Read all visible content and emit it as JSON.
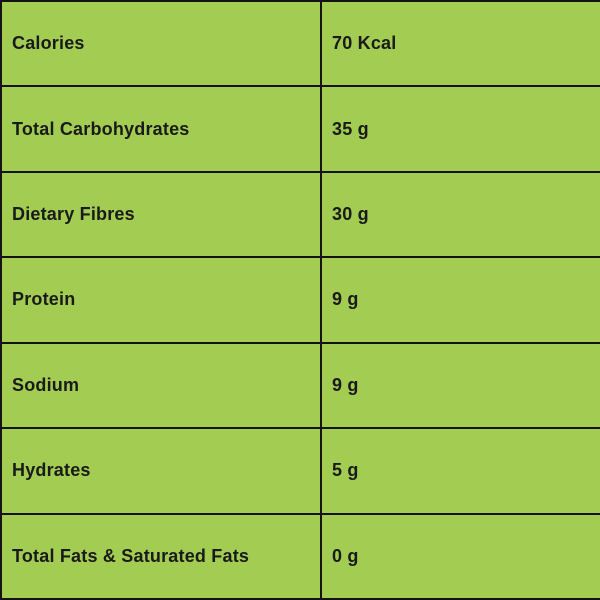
{
  "table": {
    "name": "nutrition-facts",
    "columns": [
      "nutrient",
      "amount"
    ],
    "rows": [
      {
        "label": "Calories",
        "value": "70 Kcal"
      },
      {
        "label": "Total Carbohydrates",
        "value": "35 g"
      },
      {
        "label": "Dietary Fibres",
        "value": "30 g"
      },
      {
        "label": "Protein",
        "value": "9 g"
      },
      {
        "label": "Sodium",
        "value": "9 g"
      },
      {
        "label": "Hydrates",
        "value": "5 g"
      },
      {
        "label": "Total Fats & Saturated Fats",
        "value": "0 g"
      }
    ]
  },
  "colors": {
    "background": "#A2CC52",
    "border": "#141414",
    "text": "#1A1A1A"
  }
}
